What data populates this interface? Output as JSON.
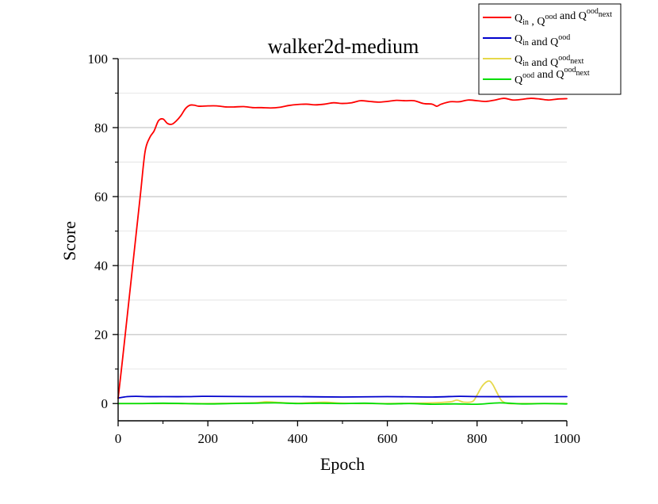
{
  "chart_data": {
    "type": "line",
    "title": "walker2d-medium",
    "xlabel": "Epoch",
    "ylabel": "Score",
    "xlim": [
      0,
      1000
    ],
    "ylim": [
      -5,
      100
    ],
    "xticks": [
      "0",
      "200",
      "400",
      "600",
      "800",
      "1000"
    ],
    "yticks": [
      "0",
      "20",
      "40",
      "60",
      "80",
      "100"
    ],
    "grid": true,
    "legend_position": "top-right",
    "series": [
      {
        "name": "Qin , Qood and Qood next",
        "legend_parts": [
          {
            "t": "Q"
          },
          {
            "t": "in",
            "s": "sub"
          },
          {
            "t": " , Q"
          },
          {
            "t": "ood",
            "s": "sup"
          },
          {
            "t": " and Q"
          },
          {
            "t": "ood",
            "s": "sup"
          },
          {
            "t": "next",
            "s": "sub"
          }
        ],
        "color": "#ff0000",
        "x": [
          0,
          10,
          20,
          30,
          40,
          50,
          60,
          70,
          80,
          90,
          100,
          110,
          120,
          130,
          140,
          150,
          160,
          170,
          180,
          200,
          220,
          240,
          260,
          280,
          300,
          320,
          340,
          360,
          380,
          400,
          420,
          440,
          460,
          480,
          500,
          520,
          540,
          560,
          580,
          600,
          620,
          640,
          660,
          680,
          700,
          710,
          720,
          740,
          760,
          780,
          800,
          820,
          840,
          860,
          880,
          900,
          920,
          940,
          960,
          980,
          1000
        ],
        "y": [
          1.5,
          13,
          25,
          37,
          49,
          61,
          73,
          77,
          79,
          82,
          82.5,
          81.2,
          81,
          82,
          83.5,
          85.5,
          86.5,
          86.5,
          86.2,
          86.3,
          86.3,
          86,
          86,
          86.1,
          85.8,
          85.8,
          85.7,
          85.9,
          86.4,
          86.7,
          86.8,
          86.6,
          86.8,
          87.2,
          87,
          87.2,
          87.8,
          87.6,
          87.4,
          87.6,
          87.9,
          87.8,
          87.8,
          87,
          86.8,
          86.2,
          86.8,
          87.5,
          87.5,
          88,
          87.8,
          87.6,
          88,
          88.5,
          88,
          88.2,
          88.5,
          88.3,
          88,
          88.3,
          88.4
        ]
      },
      {
        "name": "Qin and Qood",
        "legend_parts": [
          {
            "t": "Q"
          },
          {
            "t": "in",
            "s": "sub"
          },
          {
            "t": " and Q"
          },
          {
            "t": "ood",
            "s": "sup"
          }
        ],
        "color": "#0000cc",
        "x": [
          0,
          20,
          40,
          60,
          100,
          150,
          200,
          300,
          400,
          500,
          600,
          700,
          760,
          800,
          900,
          1000
        ],
        "y": [
          1.6,
          2.0,
          2.1,
          2.0,
          2.0,
          2.0,
          2.1,
          2.0,
          2.0,
          1.9,
          2.0,
          1.9,
          2.1,
          2.0,
          2.0,
          2.0
        ]
      },
      {
        "name": "Qin and Qood next",
        "legend_parts": [
          {
            "t": "Q"
          },
          {
            "t": "in",
            "s": "sub"
          },
          {
            "t": " and Q"
          },
          {
            "t": "ood",
            "s": "sup"
          },
          {
            "t": "next",
            "s": "sub"
          }
        ],
        "color": "#e6d84a",
        "x": [
          0,
          100,
          200,
          300,
          330,
          360,
          400,
          460,
          500,
          600,
          700,
          740,
          755,
          770,
          790,
          800,
          810,
          820,
          828,
          835,
          845,
          855,
          870,
          900,
          1000
        ],
        "y": [
          0,
          0,
          0,
          0.2,
          0.5,
          0.3,
          0.1,
          0.4,
          0.1,
          0,
          0.2,
          0.5,
          1.0,
          0.4,
          0.6,
          2.5,
          4.8,
          6.2,
          6.5,
          5.5,
          3.0,
          0.8,
          0,
          0,
          0
        ]
      },
      {
        "name": "Qood and Qood next",
        "legend_parts": [
          {
            "t": "Q"
          },
          {
            "t": "ood",
            "s": "sup"
          },
          {
            "t": " and Q"
          },
          {
            "t": "ood",
            "s": "sup"
          },
          {
            "t": "next",
            "s": "sub"
          }
        ],
        "color": "#00dd00",
        "x": [
          0,
          50,
          100,
          150,
          200,
          250,
          300,
          350,
          400,
          450,
          500,
          550,
          600,
          650,
          700,
          750,
          800,
          850,
          900,
          950,
          1000
        ],
        "y": [
          0,
          0,
          0.1,
          0,
          -0.1,
          0,
          0.1,
          0.2,
          0,
          0.1,
          0,
          0.1,
          -0.1,
          0,
          -0.2,
          -0.1,
          -0.2,
          0.2,
          -0.1,
          0,
          -0.1
        ]
      }
    ]
  }
}
